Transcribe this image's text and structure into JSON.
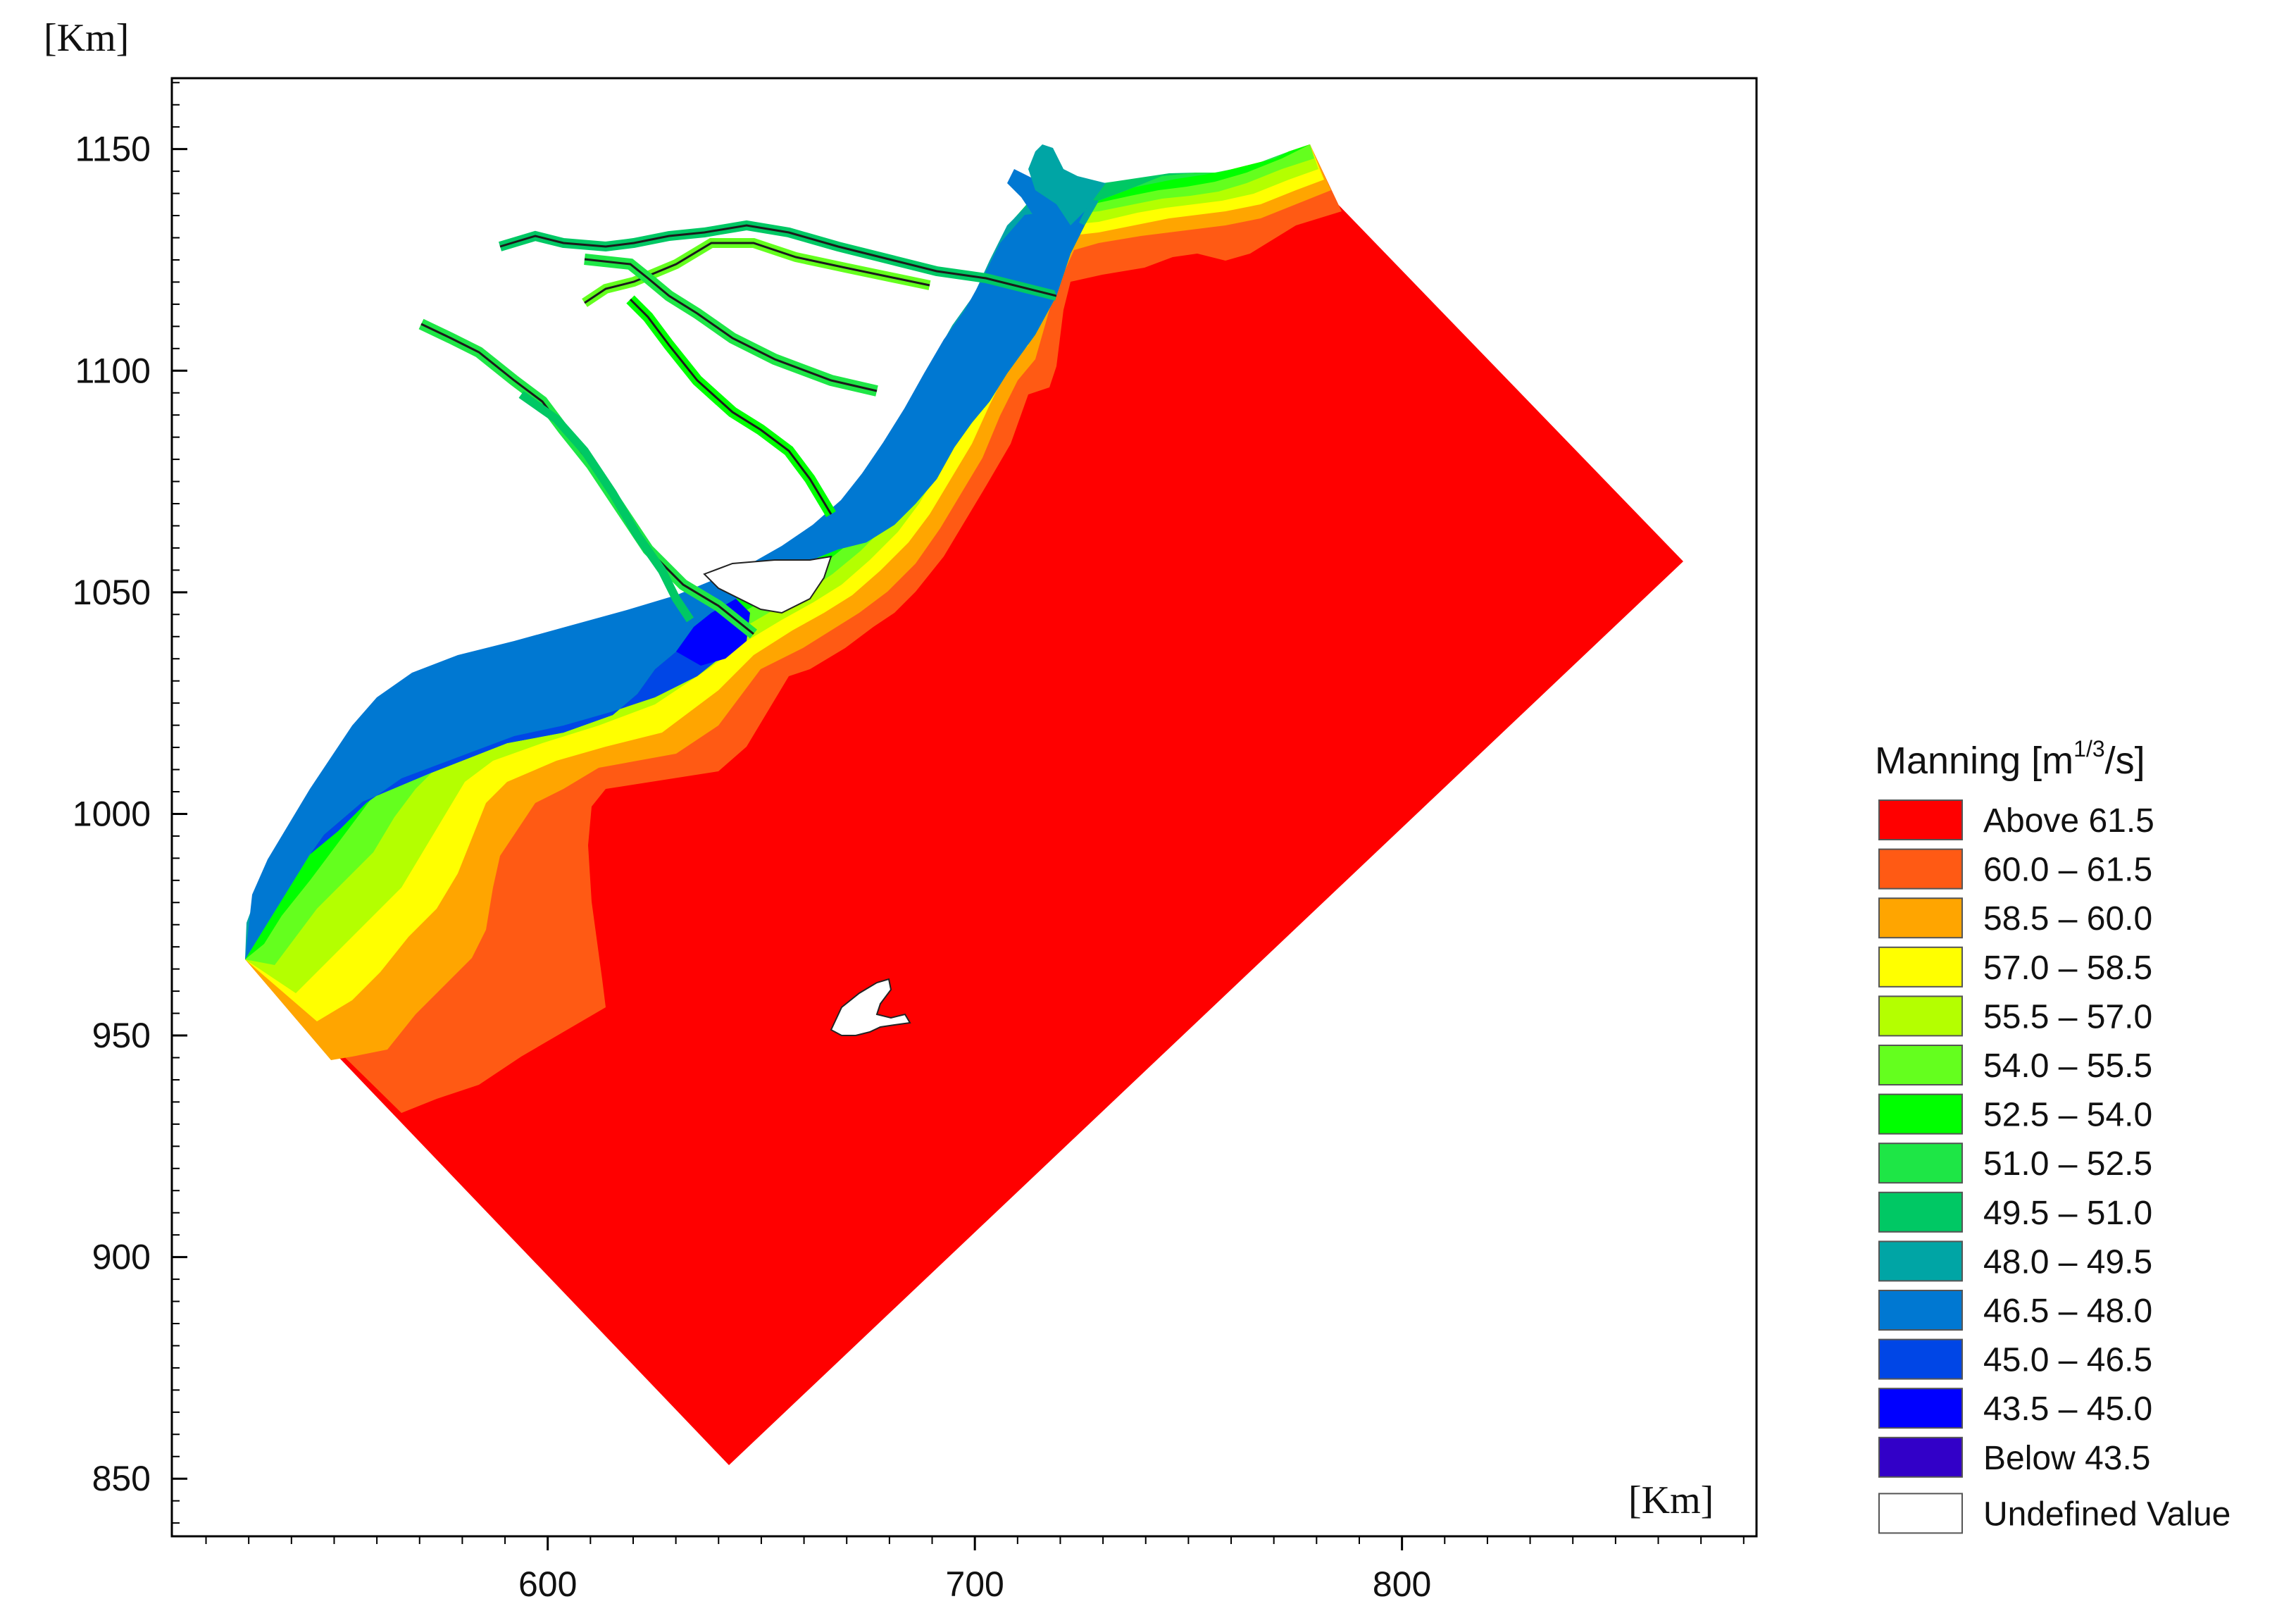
{
  "axes": {
    "y_unit": "[Km]",
    "x_unit": "[Km]",
    "y_ticks": [
      {
        "value": 1150,
        "label": "1150"
      },
      {
        "value": 1100,
        "label": "1100"
      },
      {
        "value": 1050,
        "label": "1050"
      },
      {
        "value": 1000,
        "label": "1000"
      },
      {
        "value": 950,
        "label": "950"
      },
      {
        "value": 900,
        "label": "900"
      },
      {
        "value": 850,
        "label": "850"
      }
    ],
    "x_ticks": [
      {
        "value": 600,
        "label": "600"
      },
      {
        "value": 700,
        "label": "700"
      },
      {
        "value": 800,
        "label": "800"
      }
    ],
    "x_range": [
      512,
      883
    ],
    "y_range": [
      837,
      1166
    ]
  },
  "legend": {
    "title_prefix": "Manning [m",
    "title_sup": "1/3",
    "title_suffix": "/s]",
    "items": [
      {
        "label": "Above 61.5",
        "color": "#ff0000"
      },
      {
        "label": "60.0 – 61.5",
        "color": "#ff5a14"
      },
      {
        "label": "58.5 – 60.0",
        "color": "#ffa500"
      },
      {
        "label": "57.0 – 58.5",
        "color": "#ffff00"
      },
      {
        "label": "55.5 – 57.0",
        "color": "#b4ff00"
      },
      {
        "label": "54.0 – 55.5",
        "color": "#64ff1e"
      },
      {
        "label": "52.5 – 54.0",
        "color": "#00ff00"
      },
      {
        "label": "51.0 – 52.5",
        "color": "#1ee646"
      },
      {
        "label": "49.5 – 51.0",
        "color": "#00c864"
      },
      {
        "label": "48.0 – 49.5",
        "color": "#00a5a5"
      },
      {
        "label": "46.5 – 48.0",
        "color": "#0078d2"
      },
      {
        "label": "45.0 – 46.5",
        "color": "#0046e6"
      },
      {
        "label": "43.5 – 45.0",
        "color": "#0000ff"
      },
      {
        "label": "Below 43.5",
        "color": "#3200c8"
      },
      {
        "label": "Undefined Value",
        "color": "#ffffff"
      }
    ]
  }
}
